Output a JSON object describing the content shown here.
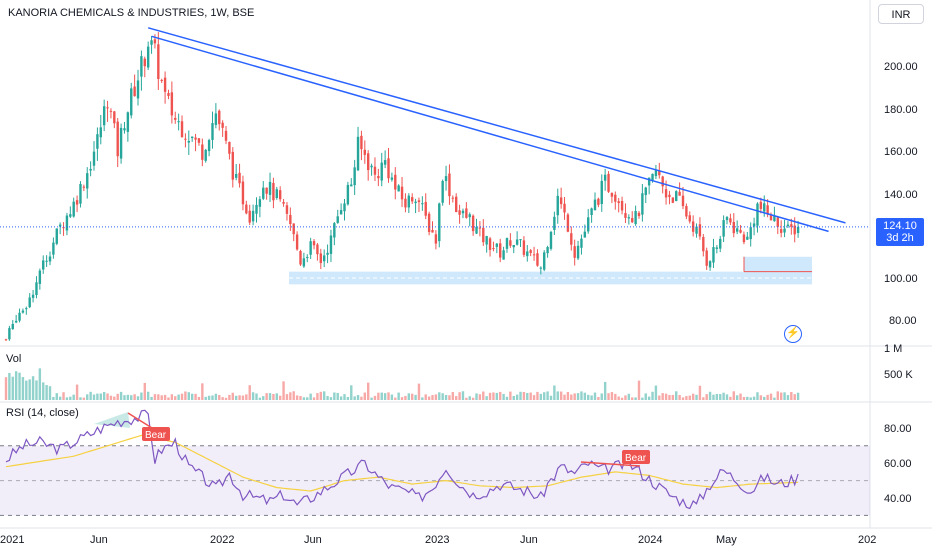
{
  "header": {
    "title": "KANORIA CHEMICALS & INDUSTRIES, 1W, BSE"
  },
  "currency": "INR",
  "last_price": {
    "value": "124.10",
    "countdown": "3d 2h"
  },
  "price_axis": {
    "labels": [
      "200.00",
      "180.00",
      "160.00",
      "140.00",
      "100.00",
      "80.00"
    ]
  },
  "volume_pane": {
    "title": "Vol",
    "axis_labels": [
      "1 M",
      "500 K"
    ]
  },
  "rsi_pane": {
    "title": "RSI (14, close)",
    "axis_labels": [
      "80.00",
      "60.00",
      "40.00"
    ],
    "bands": {
      "upper": 70,
      "middle": 50,
      "lower": 30
    }
  },
  "time_axis": {
    "labels": [
      "2021",
      "Jun",
      "2022",
      "Jun",
      "2023",
      "Jun",
      "2024",
      "May",
      "202"
    ]
  },
  "annotations": {
    "bear_labels": [
      "Bear",
      "Bear"
    ]
  },
  "chart_data": [
    {
      "type": "candlestick",
      "title": "KANORIA CHEMICALS & INDUSTRIES, 1W, BSE",
      "ylim": [
        70,
        225
      ],
      "last": 124.1,
      "colors": {
        "up": "#26a69a",
        "down": "#ef5350",
        "trendline": "#2962ff",
        "support": "#2962ff"
      },
      "anchors": [
        [
          0,
          71
        ],
        [
          3,
          82
        ],
        [
          6,
          88
        ],
        [
          9,
          98
        ],
        [
          12,
          110
        ],
        [
          16,
          124
        ],
        [
          20,
          135
        ],
        [
          24,
          150
        ],
        [
          27,
          165
        ],
        [
          30,
          185
        ],
        [
          33,
          160
        ],
        [
          35,
          175
        ],
        [
          38,
          190
        ],
        [
          41,
          205
        ],
        [
          42,
          212
        ],
        [
          44,
          205
        ],
        [
          47,
          185
        ],
        [
          50,
          175
        ],
        [
          54,
          168
        ],
        [
          58,
          160
        ],
        [
          62,
          178
        ],
        [
          64,
          168
        ],
        [
          68,
          145
        ],
        [
          72,
          130
        ],
        [
          76,
          145
        ],
        [
          80,
          138
        ],
        [
          84,
          125
        ],
        [
          87,
          108
        ],
        [
          90,
          115
        ],
        [
          93,
          108
        ],
        [
          96,
          118
        ],
        [
          99,
          135
        ],
        [
          102,
          145
        ],
        [
          104,
          162
        ],
        [
          106,
          158
        ],
        [
          109,
          148
        ],
        [
          112,
          155
        ],
        [
          115,
          142
        ],
        [
          118,
          135
        ],
        [
          121,
          140
        ],
        [
          124,
          128
        ],
        [
          127,
          118
        ],
        [
          129,
          150
        ],
        [
          131,
          142
        ],
        [
          134,
          130
        ],
        [
          137,
          128
        ],
        [
          140,
          120
        ],
        [
          143,
          116
        ],
        [
          146,
          112
        ],
        [
          149,
          118
        ],
        [
          152,
          115
        ],
        [
          155,
          110
        ],
        [
          158,
          105
        ],
        [
          160,
          118
        ],
        [
          163,
          138
        ],
        [
          166,
          125
        ],
        [
          168,
          112
        ],
        [
          171,
          122
        ],
        [
          174,
          135
        ],
        [
          177,
          145
        ],
        [
          180,
          140
        ],
        [
          183,
          132
        ],
        [
          186,
          128
        ],
        [
          189,
          140
        ],
        [
          192,
          150
        ],
        [
          195,
          140
        ],
        [
          198,
          138
        ],
        [
          201,
          130
        ],
        [
          204,
          122
        ],
        [
          207,
          108
        ],
        [
          210,
          115
        ],
        [
          213,
          128
        ],
        [
          216,
          122
        ],
        [
          219,
          118
        ],
        [
          222,
          134
        ],
        [
          225,
          130
        ],
        [
          228,
          126
        ],
        [
          231,
          122
        ],
        [
          234,
          124.1
        ]
      ],
      "trendlines": [
        {
          "from": {
            "week": 42,
            "price": 218
          },
          "to": {
            "week": 248,
            "price": 126
          }
        },
        {
          "from": {
            "week": 43,
            "price": 214
          },
          "to": {
            "week": 243,
            "price": 122
          }
        }
      ],
      "support_zone": [
        97,
        103
      ]
    },
    {
      "type": "bar",
      "title": "Vol",
      "ylim": [
        0,
        1000000
      ]
    },
    {
      "type": "line",
      "title": "RSI (14, close)",
      "ylim": [
        22,
        92
      ],
      "rsi_anchors": [
        [
          0,
          62
        ],
        [
          5,
          70
        ],
        [
          10,
          72
        ],
        [
          16,
          68
        ],
        [
          22,
          74
        ],
        [
          28,
          80
        ],
        [
          33,
          84
        ],
        [
          38,
          86
        ],
        [
          42,
          88
        ],
        [
          44,
          62
        ],
        [
          46,
          68
        ],
        [
          50,
          72
        ],
        [
          54,
          58
        ],
        [
          58,
          52
        ],
        [
          62,
          45
        ],
        [
          66,
          54
        ],
        [
          70,
          42
        ],
        [
          74,
          40
        ],
        [
          78,
          38
        ],
        [
          82,
          42
        ],
        [
          86,
          36
        ],
        [
          90,
          40
        ],
        [
          94,
          45
        ],
        [
          98,
          50
        ],
        [
          102,
          55
        ],
        [
          106,
          60
        ],
        [
          110,
          52
        ],
        [
          114,
          46
        ],
        [
          118,
          44
        ],
        [
          122,
          40
        ],
        [
          126,
          46
        ],
        [
          130,
          58
        ],
        [
          134,
          48
        ],
        [
          138,
          42
        ],
        [
          142,
          44
        ],
        [
          146,
          48
        ],
        [
          150,
          46
        ],
        [
          154,
          44
        ],
        [
          158,
          40
        ],
        [
          160,
          48
        ],
        [
          164,
          58
        ],
        [
          168,
          54
        ],
        [
          172,
          60
        ],
        [
          176,
          56
        ],
        [
          180,
          58
        ],
        [
          184,
          60
        ],
        [
          188,
          54
        ],
        [
          192,
          48
        ],
        [
          196,
          42
        ],
        [
          200,
          38
        ],
        [
          204,
          36
        ],
        [
          208,
          48
        ],
        [
          212,
          56
        ],
        [
          216,
          50
        ],
        [
          220,
          44
        ],
        [
          224,
          52
        ],
        [
          228,
          48
        ],
        [
          232,
          50
        ],
        [
          234,
          52
        ]
      ],
      "ma_anchors": [
        [
          0,
          58
        ],
        [
          20,
          64
        ],
        [
          40,
          76
        ],
        [
          50,
          72
        ],
        [
          60,
          62
        ],
        [
          70,
          52
        ],
        [
          80,
          46
        ],
        [
          90,
          44
        ],
        [
          100,
          50
        ],
        [
          110,
          52
        ],
        [
          120,
          48
        ],
        [
          130,
          50
        ],
        [
          140,
          47
        ],
        [
          150,
          46
        ],
        [
          160,
          47
        ],
        [
          170,
          52
        ],
        [
          180,
          55
        ],
        [
          190,
          53
        ],
        [
          200,
          48
        ],
        [
          210,
          46
        ],
        [
          220,
          48
        ],
        [
          234,
          49
        ]
      ]
    }
  ]
}
